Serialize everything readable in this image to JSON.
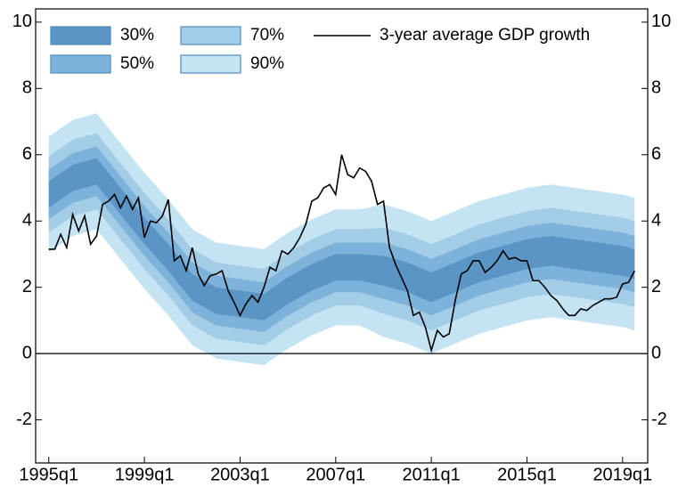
{
  "chart_data": {
    "type": "fan",
    "legend_position": "upper left",
    "xlim": [
      1994.45,
      2020.05
    ],
    "ylim": [
      -3.3,
      10.4
    ],
    "y2lim": [
      -3.3,
      10.4
    ],
    "xticks": [
      {
        "value": 1995,
        "label": "1995q1"
      },
      {
        "value": 1999,
        "label": "1999q1"
      },
      {
        "value": 2003,
        "label": "2003q1"
      },
      {
        "value": 2007,
        "label": "2007q1"
      },
      {
        "value": 2011,
        "label": "2011q1"
      },
      {
        "value": 2015,
        "label": "2015q1"
      },
      {
        "value": 2019,
        "label": "2019q1"
      }
    ],
    "yticks": [
      -2,
      0,
      2,
      4,
      6,
      8,
      10
    ],
    "y2ticks": [
      -2,
      0,
      2,
      4,
      6,
      8,
      10
    ],
    "reference_line": 0,
    "x": [
      1995,
      1996,
      1997,
      1998,
      1999,
      2000,
      2001,
      2002,
      2003,
      2004,
      2005,
      2006,
      2007,
      2008,
      2009,
      2010,
      2011,
      2012,
      2013,
      2014,
      2015,
      2016,
      2017,
      2018,
      2019,
      2019.5
    ],
    "series": [
      {
        "name": "30%",
        "color": "#5b95c6",
        "lower": [
          4.4,
          4.9,
          5.1,
          4.2,
          3.3,
          2.5,
          1.6,
          1.2,
          1.1,
          1.0,
          1.5,
          1.9,
          2.2,
          2.2,
          2.05,
          1.85,
          1.55,
          1.85,
          2.15,
          2.35,
          2.55,
          2.65,
          2.55,
          2.45,
          2.35,
          2.25
        ],
        "upper": [
          5.2,
          5.7,
          5.9,
          5.0,
          4.1,
          3.3,
          2.4,
          2.0,
          1.9,
          1.8,
          2.3,
          2.7,
          3.0,
          3.0,
          2.95,
          2.75,
          2.45,
          2.75,
          3.05,
          3.25,
          3.45,
          3.55,
          3.45,
          3.35,
          3.25,
          3.15
        ]
      },
      {
        "name": "50%",
        "color": "#7db3da",
        "lower": [
          4.05,
          4.55,
          4.75,
          3.85,
          2.95,
          2.15,
          1.25,
          0.85,
          0.75,
          0.65,
          1.15,
          1.55,
          1.85,
          1.85,
          1.65,
          1.45,
          1.15,
          1.45,
          1.75,
          1.95,
          2.15,
          2.25,
          2.15,
          2.05,
          1.95,
          1.85
        ],
        "upper": [
          5.55,
          6.05,
          6.25,
          5.35,
          4.45,
          3.65,
          2.75,
          2.35,
          2.25,
          2.15,
          2.65,
          3.05,
          3.35,
          3.35,
          3.35,
          3.15,
          2.85,
          3.15,
          3.45,
          3.65,
          3.85,
          3.95,
          3.85,
          3.75,
          3.65,
          3.55
        ]
      },
      {
        "name": "70%",
        "color": "#a3cce6",
        "lower": [
          3.65,
          4.15,
          4.35,
          3.45,
          2.55,
          1.75,
          0.85,
          0.45,
          0.35,
          0.25,
          0.75,
          1.15,
          1.45,
          1.45,
          1.2,
          1.0,
          0.7,
          1.0,
          1.3,
          1.5,
          1.7,
          1.8,
          1.7,
          1.6,
          1.5,
          1.4
        ],
        "upper": [
          5.95,
          6.45,
          6.65,
          5.75,
          4.85,
          4.05,
          3.15,
          2.75,
          2.65,
          2.55,
          3.05,
          3.45,
          3.75,
          3.75,
          3.8,
          3.6,
          3.3,
          3.6,
          3.9,
          4.1,
          4.3,
          4.4,
          4.3,
          4.2,
          4.1,
          4.0
        ]
      },
      {
        "name": "90%",
        "color": "#c4e4f4",
        "lower": [
          3.05,
          3.55,
          3.75,
          2.85,
          1.95,
          1.15,
          0.25,
          -0.15,
          -0.25,
          -0.35,
          0.15,
          0.55,
          0.85,
          0.85,
          0.5,
          0.3,
          0.0,
          0.3,
          0.6,
          0.8,
          1.0,
          1.1,
          1.0,
          0.9,
          0.8,
          0.7
        ],
        "upper": [
          6.55,
          7.05,
          7.25,
          6.35,
          5.45,
          4.65,
          3.75,
          3.35,
          3.25,
          3.15,
          3.65,
          4.05,
          4.35,
          4.35,
          4.5,
          4.3,
          4.0,
          4.3,
          4.6,
          4.8,
          5.0,
          5.1,
          5.0,
          4.9,
          4.8,
          4.7
        ]
      },
      {
        "name": "3-year average GDP growth",
        "color": "#000000",
        "x": [
          1995,
          1995.25,
          1995.5,
          1995.75,
          1996,
          1996.25,
          1996.5,
          1996.75,
          1997,
          1997.25,
          1997.5,
          1997.75,
          1998,
          1998.25,
          1998.5,
          1998.75,
          1999,
          1999.25,
          1999.5,
          1999.75,
          2000,
          2000.25,
          2000.5,
          2000.75,
          2001,
          2001.25,
          2001.5,
          2001.75,
          2002,
          2002.25,
          2002.5,
          2002.75,
          2003,
          2003.25,
          2003.5,
          2003.75,
          2004,
          2004.25,
          2004.5,
          2004.75,
          2005,
          2005.25,
          2005.5,
          2005.75,
          2006,
          2006.25,
          2006.5,
          2006.75,
          2007,
          2007.25,
          2007.5,
          2007.75,
          2008,
          2008.25,
          2008.5,
          2008.75,
          2009,
          2009.25,
          2009.5,
          2009.75,
          2010,
          2010.25,
          2010.5,
          2010.75,
          2011,
          2011.25,
          2011.5,
          2011.75,
          2012,
          2012.25,
          2012.5,
          2012.75,
          2013,
          2013.25,
          2013.5,
          2013.75,
          2014,
          2014.25,
          2014.5,
          2014.75,
          2015,
          2015.25,
          2015.5,
          2015.75,
          2016,
          2016.25,
          2016.5,
          2016.75,
          2017,
          2017.25,
          2017.5,
          2017.75,
          2018,
          2018.25,
          2018.5,
          2018.75,
          2019,
          2019.25,
          2019.5
        ],
        "values": [
          3.15,
          3.15,
          3.6,
          3.2,
          4.2,
          3.7,
          4.15,
          3.3,
          3.55,
          4.5,
          4.6,
          4.8,
          4.4,
          4.75,
          4.35,
          4.7,
          3.5,
          4.0,
          3.95,
          4.15,
          4.65,
          2.8,
          2.95,
          2.5,
          3.2,
          2.4,
          2.05,
          2.35,
          2.4,
          2.5,
          1.9,
          1.55,
          1.15,
          1.5,
          1.75,
          1.55,
          2.0,
          2.6,
          2.5,
          3.1,
          3.0,
          3.2,
          3.5,
          3.9,
          4.6,
          4.7,
          5.0,
          5.1,
          4.8,
          6.0,
          5.4,
          5.3,
          5.6,
          5.5,
          5.2,
          4.5,
          4.6,
          3.2,
          2.7,
          2.3,
          1.9,
          1.15,
          1.25,
          0.8,
          0.1,
          0.7,
          0.5,
          0.6,
          1.6,
          2.4,
          2.5,
          2.8,
          2.8,
          2.45,
          2.6,
          2.8,
          3.1,
          2.85,
          2.9,
          2.8,
          2.8,
          2.2,
          2.2,
          2.0,
          1.75,
          1.6,
          1.35,
          1.15,
          1.15,
          1.35,
          1.3,
          1.45,
          1.55,
          1.65,
          1.65,
          1.7,
          2.1,
          2.15,
          2.5
        ]
      }
    ]
  }
}
